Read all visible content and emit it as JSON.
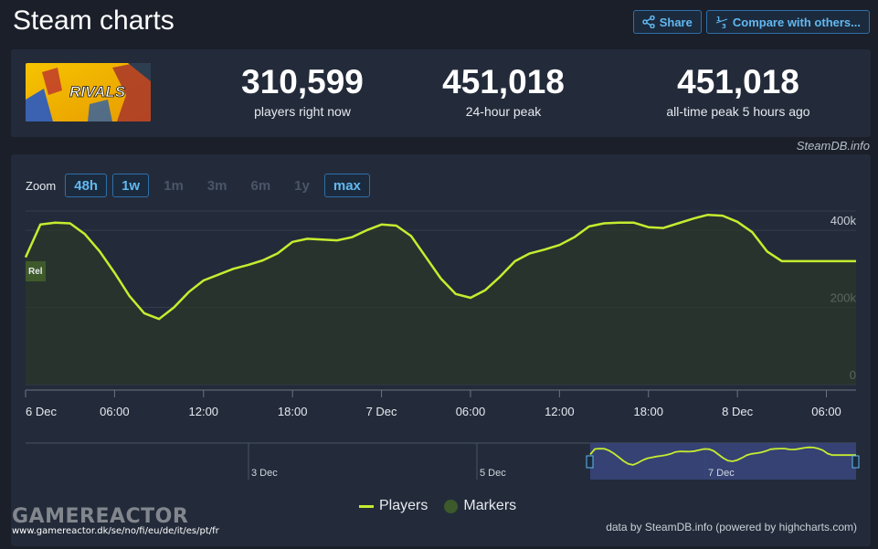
{
  "header": {
    "title": "Steam charts"
  },
  "actions": {
    "share_label": "Share",
    "compare_label": "Compare with others..."
  },
  "stats": [
    {
      "value": "310,599",
      "label": "players right now"
    },
    {
      "value": "451,018",
      "label": "24-hour peak"
    },
    {
      "value": "451,018",
      "label": "all-time peak 5 hours ago"
    }
  ],
  "game": {
    "logo_text": "RIVALS"
  },
  "credit": "SteamDB.info",
  "zoom": {
    "label": "Zoom",
    "options": [
      {
        "label": "48h",
        "active": true
      },
      {
        "label": "1w",
        "active": true
      },
      {
        "label": "1m",
        "active": false
      },
      {
        "label": "3m",
        "active": false
      },
      {
        "label": "6m",
        "active": false
      },
      {
        "label": "1y",
        "active": false
      },
      {
        "label": "max",
        "active": true
      }
    ]
  },
  "chart_data": {
    "type": "area",
    "x_ticks": [
      "6 Dec",
      "06:00",
      "12:00",
      "18:00",
      "7 Dec",
      "06:00",
      "12:00",
      "18:00",
      "8 Dec",
      "06:00"
    ],
    "y_ticks": [
      "0",
      "200k",
      "400k"
    ],
    "ylim": [
      0,
      450000
    ],
    "marker_label": "Rel",
    "series": [
      {
        "name": "Players",
        "color": "#c6ec2f",
        "x_hours": [
          0,
          1,
          2,
          3,
          4,
          5,
          6,
          7,
          8,
          9,
          10,
          11,
          12,
          13,
          14,
          15,
          16,
          17,
          18,
          19,
          20,
          21,
          22,
          23,
          24,
          25,
          26,
          27,
          28,
          29,
          30,
          31,
          32,
          33,
          34,
          35,
          36,
          37,
          38,
          39,
          40,
          41,
          42,
          43,
          44,
          45,
          46,
          47,
          48,
          49,
          50,
          51,
          52,
          53,
          54,
          55,
          56
        ],
        "values": [
          330000,
          415000,
          420000,
          418000,
          390000,
          345000,
          290000,
          230000,
          185000,
          170000,
          200000,
          240000,
          270000,
          285000,
          300000,
          310000,
          322000,
          340000,
          370000,
          378000,
          376000,
          374000,
          382000,
          400000,
          415000,
          412000,
          385000,
          330000,
          275000,
          235000,
          225000,
          245000,
          280000,
          320000,
          340000,
          350000,
          362000,
          382000,
          410000,
          418000,
          420000,
          420000,
          408000,
          406000,
          418000,
          430000,
          440000,
          438000,
          422000,
          395000,
          345000,
          320000,
          320000,
          320000,
          320000,
          320000,
          320000
        ]
      },
      {
        "name": "Markers"
      }
    ],
    "navigator": {
      "ticks": [
        "3 Dec",
        "5 Dec",
        "7 Dec"
      ]
    }
  },
  "footer": {
    "credit": "data by SteamDB.info (powered by highcharts.com)"
  },
  "watermark": {
    "logo": "GAMEREACTOR",
    "url": "www.gamereactor.dk/se/no/fi/eu/de/it/es/pt/fr"
  }
}
